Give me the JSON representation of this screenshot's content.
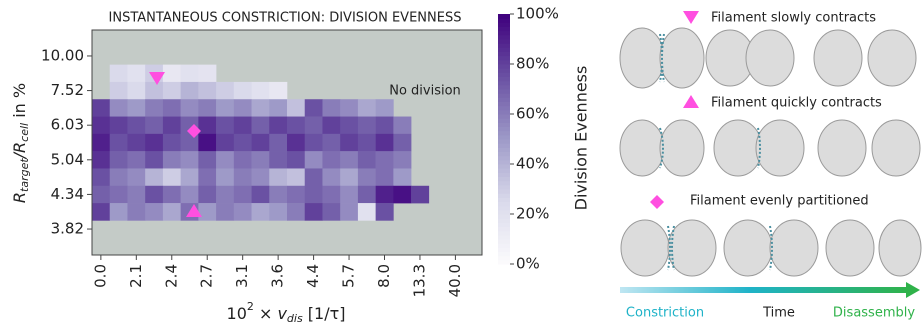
{
  "chart_data": {
    "type": "heatmap",
    "title": "INSTANTANEOUS CONSTRICTION: DIVISION EVENNESS",
    "x_label": [
      "10",
      "2",
      " × v",
      "dis",
      " [1/τ]"
    ],
    "y_label": [
      "R",
      "target",
      "/R",
      "cell",
      " in %"
    ],
    "x_categories": [
      "0.0",
      null,
      "2.1",
      null,
      "2.4",
      null,
      "2.7",
      null,
      "3.1",
      null,
      "3.6",
      null,
      "4.4",
      null,
      "5.7",
      null,
      "8.0",
      null,
      "13.3",
      null,
      "40.0",
      null
    ],
    "y_categories": [
      null,
      "10.00",
      null,
      "7.52",
      null,
      "6.03",
      null,
      "5.04",
      null,
      "4.34",
      null,
      "3.82",
      null
    ],
    "values": [
      [
        null,
        null,
        null,
        null,
        null,
        null,
        null,
        null,
        null,
        null,
        null,
        null,
        null,
        null,
        null,
        null,
        null,
        null,
        null,
        null,
        null,
        null
      ],
      [
        null,
        null,
        null,
        null,
        null,
        null,
        null,
        null,
        null,
        null,
        null,
        null,
        null,
        null,
        null,
        null,
        null,
        null,
        null,
        null,
        null,
        null
      ],
      [
        null,
        25,
        20,
        30,
        15,
        20,
        18,
        null,
        null,
        null,
        null,
        null,
        null,
        null,
        null,
        null,
        null,
        null,
        null,
        null,
        null,
        null
      ],
      [
        null,
        30,
        25,
        35,
        30,
        40,
        35,
        30,
        25,
        20,
        15,
        null,
        null,
        null,
        null,
        null,
        null,
        null,
        null,
        null,
        null,
        null
      ],
      [
        80,
        55,
        50,
        60,
        65,
        55,
        60,
        50,
        55,
        45,
        50,
        35,
        75,
        60,
        55,
        45,
        50,
        null,
        null,
        null,
        null,
        null
      ],
      [
        85,
        80,
        75,
        70,
        80,
        70,
        85,
        75,
        80,
        70,
        80,
        75,
        70,
        80,
        75,
        70,
        75,
        60,
        null,
        null,
        null,
        null
      ],
      [
        90,
        75,
        80,
        85,
        75,
        70,
        95,
        80,
        75,
        80,
        70,
        85,
        75,
        70,
        80,
        75,
        85,
        70,
        null,
        null,
        null,
        null
      ],
      [
        85,
        70,
        65,
        75,
        60,
        55,
        70,
        55,
        65,
        60,
        70,
        75,
        55,
        65,
        60,
        70,
        65,
        60,
        null,
        null,
        null,
        null
      ],
      [
        75,
        60,
        55,
        40,
        30,
        45,
        65,
        50,
        60,
        55,
        40,
        35,
        70,
        55,
        45,
        60,
        65,
        50,
        null,
        null,
        null,
        null
      ],
      [
        70,
        65,
        60,
        75,
        65,
        55,
        70,
        60,
        65,
        75,
        60,
        65,
        70,
        65,
        55,
        70,
        90,
        95,
        80,
        null,
        null,
        null
      ],
      [
        80,
        50,
        60,
        55,
        45,
        65,
        50,
        60,
        55,
        45,
        50,
        60,
        80,
        70,
        55,
        20,
        75,
        null,
        null,
        null,
        null,
        null
      ],
      [
        null,
        null,
        null,
        null,
        null,
        null,
        null,
        null,
        null,
        null,
        null,
        null,
        null,
        null,
        null,
        null,
        null,
        null,
        null,
        null,
        null,
        null
      ],
      [
        null,
        null,
        null,
        null,
        null,
        null,
        null,
        null,
        null,
        null,
        null,
        null,
        null,
        null,
        null,
        null,
        null,
        null,
        null,
        null,
        null,
        null
      ]
    ],
    "colors": [
      "#fcfbfd",
      "#dadaeb",
      "#9e9ac8",
      "#6a51a3",
      "#3f007d"
    ],
    "empty_color": "#c4cbc7",
    "annotation": "No division",
    "colorbar_label": "Division Evenness",
    "clim": [
      0,
      100
    ],
    "cticks": [
      {
        "value": 0,
        "label": "0%"
      },
      {
        "value": 20,
        "label": "20%"
      },
      {
        "value": 40,
        "label": "40%"
      },
      {
        "value": 60,
        "label": "60%"
      },
      {
        "value": 80,
        "label": "80%"
      },
      {
        "value": 100,
        "label": "100%"
      }
    ]
  },
  "panel": {
    "captions": [
      "Filament slowly contracts",
      "Filament quickly contracts",
      "Filament evenly partitioned"
    ],
    "timeline": [
      "Constriction",
      "Time",
      "Disassembly"
    ]
  }
}
